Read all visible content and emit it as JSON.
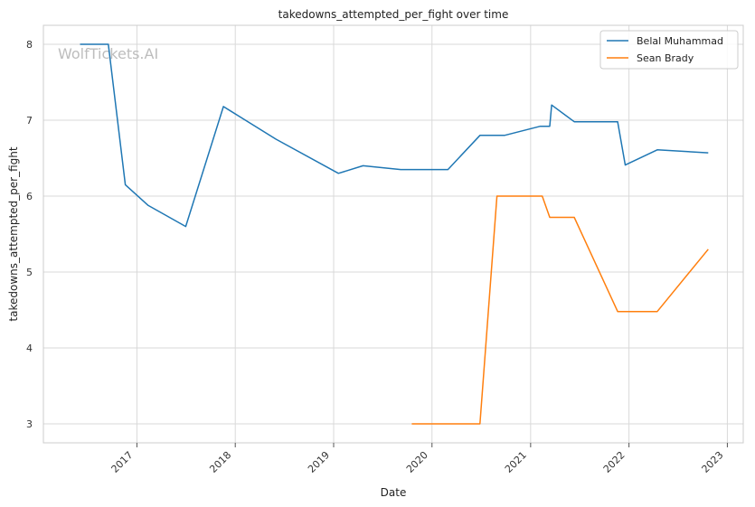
{
  "chart_data": {
    "type": "line",
    "title": "takedowns_attempted_per_fight over time",
    "xlabel": "Date",
    "ylabel": "takedowns_attempted_per_fight",
    "watermark": "WolfTickets.AI",
    "xlim": [
      "2016-01-20",
      "2023-03-01"
    ],
    "ylim": [
      2.75,
      8.25
    ],
    "x_ticks": [
      "2017",
      "2018",
      "2019",
      "2020",
      "2021",
      "2022",
      "2023"
    ],
    "y_ticks": [
      3,
      4,
      5,
      6,
      7,
      8
    ],
    "grid": true,
    "legend_position": "top-right",
    "series": [
      {
        "name": "Belal Muhammad",
        "color": "#1f77b4",
        "points": [
          {
            "x": "2016-06-04",
            "y": 8.0
          },
          {
            "x": "2016-09-17",
            "y": 8.0
          },
          {
            "x": "2016-11-19",
            "y": 6.15
          },
          {
            "x": "2017-02-11",
            "y": 5.88
          },
          {
            "x": "2017-07-01",
            "y": 5.6
          },
          {
            "x": "2017-11-18",
            "y": 7.18
          },
          {
            "x": "2018-06-01",
            "y": 6.75
          },
          {
            "x": "2019-01-19",
            "y": 6.3
          },
          {
            "x": "2019-04-20",
            "y": 6.4
          },
          {
            "x": "2019-09-07",
            "y": 6.35
          },
          {
            "x": "2020-02-29",
            "y": 6.35
          },
          {
            "x": "2020-06-27",
            "y": 6.8
          },
          {
            "x": "2020-09-26",
            "y": 6.8
          },
          {
            "x": "2021-02-06",
            "y": 6.92
          },
          {
            "x": "2021-03-13",
            "y": 6.92
          },
          {
            "x": "2021-03-20",
            "y": 7.2
          },
          {
            "x": "2021-06-12",
            "y": 6.98
          },
          {
            "x": "2021-11-20",
            "y": 6.98
          },
          {
            "x": "2021-12-18",
            "y": 6.41
          },
          {
            "x": "2022-04-16",
            "y": 6.61
          },
          {
            "x": "2022-10-22",
            "y": 6.57
          }
        ]
      },
      {
        "name": "Sean Brady",
        "color": "#ff7f0e",
        "points": [
          {
            "x": "2019-10-18",
            "y": 3.0
          },
          {
            "x": "2020-06-27",
            "y": 3.0
          },
          {
            "x": "2020-08-29",
            "y": 6.0
          },
          {
            "x": "2021-02-13",
            "y": 6.0
          },
          {
            "x": "2021-03-13",
            "y": 5.72
          },
          {
            "x": "2021-06-12",
            "y": 5.72
          },
          {
            "x": "2021-11-20",
            "y": 4.48
          },
          {
            "x": "2022-04-16",
            "y": 4.48
          },
          {
            "x": "2022-10-22",
            "y": 5.3
          }
        ]
      }
    ]
  }
}
